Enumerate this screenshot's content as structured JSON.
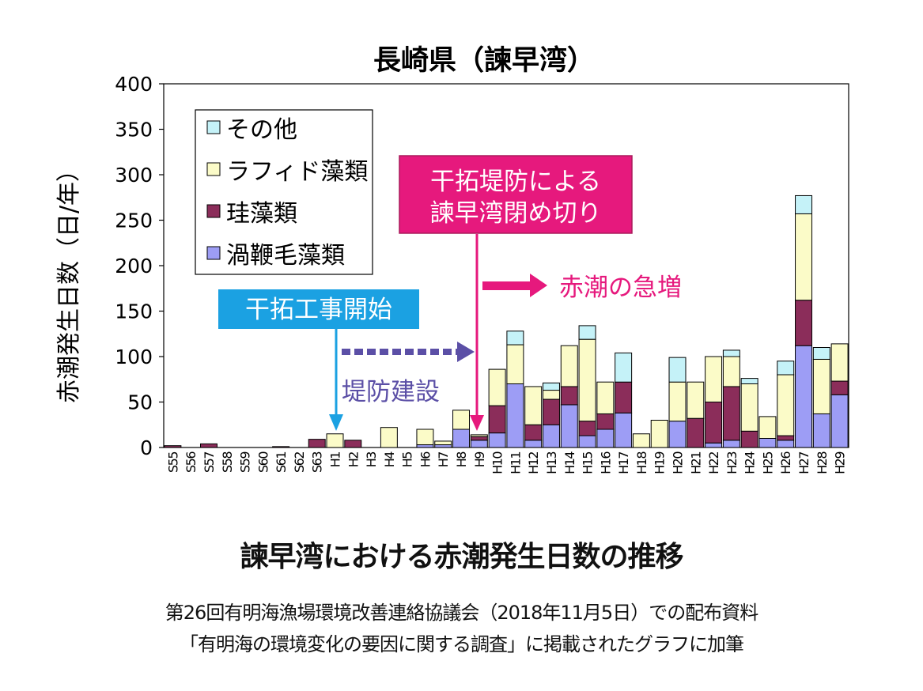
{
  "chart_data": {
    "type": "bar",
    "stacked": true,
    "title": "長崎県（諫早湾）",
    "ylabel": "赤潮発生日数（日/年）",
    "ylim": [
      0,
      400
    ],
    "yticks": [
      0,
      50,
      100,
      150,
      200,
      250,
      300,
      350,
      400
    ],
    "grid": false,
    "legend_position": "top-left",
    "categories": [
      "S55",
      "S56",
      "S57",
      "S58",
      "S59",
      "S60",
      "S61",
      "S62",
      "S63",
      "H1",
      "H2",
      "H3",
      "H4",
      "H5",
      "H6",
      "H7",
      "H8",
      "H9",
      "H10",
      "H11",
      "H12",
      "H13",
      "H14",
      "H15",
      "H16",
      "H17",
      "H18",
      "H19",
      "H20",
      "H21",
      "H22",
      "H23",
      "H24",
      "H25",
      "H26",
      "H27",
      "H28",
      "H29"
    ],
    "series": [
      {
        "name": "渦鞭毛藻類",
        "color": "#9d9df5",
        "values": [
          0,
          0,
          0,
          0,
          0,
          0,
          0,
          0,
          0,
          0,
          0,
          0,
          0,
          0,
          3,
          3,
          20,
          8,
          16,
          70,
          8,
          25,
          47,
          13,
          20,
          38,
          0,
          0,
          29,
          0,
          5,
          8,
          0,
          10,
          8,
          112,
          37,
          58
        ]
      },
      {
        "name": "珪藻類",
        "color": "#8b2d5a",
        "values": [
          2,
          0,
          4,
          0,
          0,
          0,
          1,
          0,
          9,
          0,
          8,
          0,
          0,
          0,
          0,
          0,
          0,
          4,
          30,
          0,
          17,
          28,
          20,
          16,
          17,
          34,
          0,
          0,
          0,
          32,
          45,
          59,
          18,
          0,
          5,
          50,
          0,
          15
        ]
      },
      {
        "name": "ラフィド藻類",
        "color": "#fbfbc8",
        "values": [
          0,
          0,
          0,
          0,
          0,
          0,
          0,
          0,
          0,
          15,
          0,
          0,
          22,
          0,
          17,
          4,
          21,
          2,
          40,
          43,
          42,
          10,
          45,
          90,
          35,
          0,
          15,
          30,
          43,
          40,
          50,
          33,
          52,
          24,
          67,
          95,
          60,
          41
        ]
      },
      {
        "name": "その他",
        "color": "#c5f2f8",
        "values": [
          0,
          0,
          0,
          0,
          0,
          0,
          0,
          0,
          0,
          0,
          0,
          0,
          0,
          0,
          0,
          0,
          0,
          0,
          0,
          15,
          0,
          8,
          0,
          15,
          0,
          32,
          0,
          0,
          27,
          0,
          0,
          7,
          6,
          0,
          15,
          20,
          13,
          0
        ]
      }
    ]
  },
  "annotations": {
    "closure_box": "干拓堤防による\n諫早湾閉め切り",
    "construction_start_box": "干拓工事開始",
    "surge_text": "赤潮の急増",
    "levee_text": "堤防建設"
  },
  "captions": {
    "main": "諫早湾における赤潮発生日数の推移",
    "source1": "第26回有明海漁場環境改善連絡協議会（2018年11月5日）での配布資料",
    "source2": "「有明海の環境変化の要因に関する調査」に掲載されたグラフに加筆"
  },
  "colors": {
    "magenta": "#e6197d",
    "blue": "#1ba1e2",
    "purple": "#5b4fa6"
  }
}
